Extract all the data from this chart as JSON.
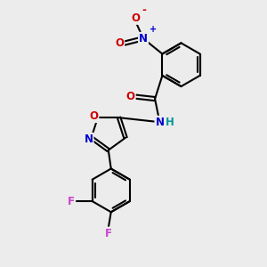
{
  "background_color": "#ececec",
  "bond_color": "#000000",
  "bond_width": 1.5,
  "atom_colors": {
    "N": "#0000cc",
    "O": "#cc0000",
    "F": "#cc44cc",
    "H": "#009999"
  },
  "font_size": 8.5
}
